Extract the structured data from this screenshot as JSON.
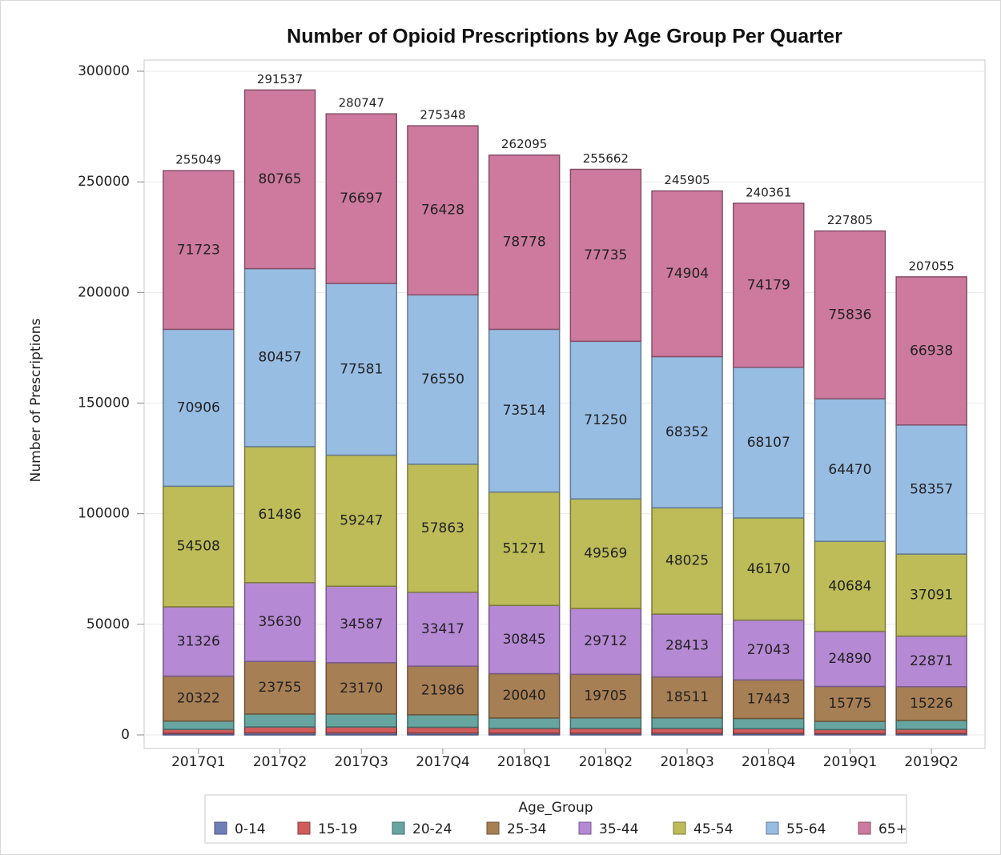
{
  "chart_data": {
    "type": "stacked_bar",
    "title": "Number of Opioid Prescriptions by Age Group Per Quarter",
    "y_label": "Number of Prescriptions",
    "legend_title": "Age_Group",
    "legend_position": "bottom",
    "grid": true,
    "categories": [
      "2017Q1",
      "2017Q2",
      "2017Q3",
      "2017Q4",
      "2018Q1",
      "2018Q2",
      "2018Q3",
      "2018Q4",
      "2019Q1",
      "2019Q2"
    ],
    "ylim": [
      0,
      300000
    ],
    "yticks": [
      0,
      50000,
      100000,
      150000,
      200000,
      250000,
      300000
    ],
    "series": [
      {
        "name": "0-14",
        "color": "#6f7eb9",
        "values": [
          700,
          900,
          900,
          850,
          750,
          750,
          750,
          700,
          600,
          650
        ]
      },
      {
        "name": "15-19",
        "color": "#d05b5b",
        "values": [
          1800,
          2700,
          2700,
          2600,
          2200,
          2200,
          2200,
          2100,
          1800,
          1900
        ]
      },
      {
        "name": "20-24",
        "color": "#66a5a0",
        "values": [
          3764,
          5844,
          5865,
          5654,
          4697,
          4741,
          4750,
          4619,
          3750,
          4022
        ]
      },
      {
        "name": "25-34",
        "color": "#a77f54",
        "values": [
          20322,
          23755,
          23170,
          21986,
          20040,
          19705,
          18511,
          17443,
          15775,
          15226
        ]
      },
      {
        "name": "35-44",
        "color": "#b689d4",
        "values": [
          31326,
          35630,
          34587,
          33417,
          30845,
          29712,
          28413,
          27043,
          24890,
          22871
        ]
      },
      {
        "name": "45-54",
        "color": "#bdbc58",
        "values": [
          54508,
          61486,
          59247,
          57863,
          51271,
          49569,
          48025,
          46170,
          40684,
          37091
        ]
      },
      {
        "name": "55-64",
        "color": "#98bde3",
        "values": [
          70906,
          80457,
          77581,
          76550,
          73514,
          71250,
          68352,
          68107,
          64470,
          58357
        ]
      },
      {
        "name": "65+",
        "color": "#cd7a9e",
        "values": [
          71723,
          80765,
          76697,
          76428,
          78778,
          77735,
          74904,
          74179,
          75836,
          66938
        ]
      }
    ],
    "totals": [
      255049,
      291537,
      280747,
      275348,
      262095,
      255662,
      245905,
      240361,
      227805,
      207055
    ]
  }
}
